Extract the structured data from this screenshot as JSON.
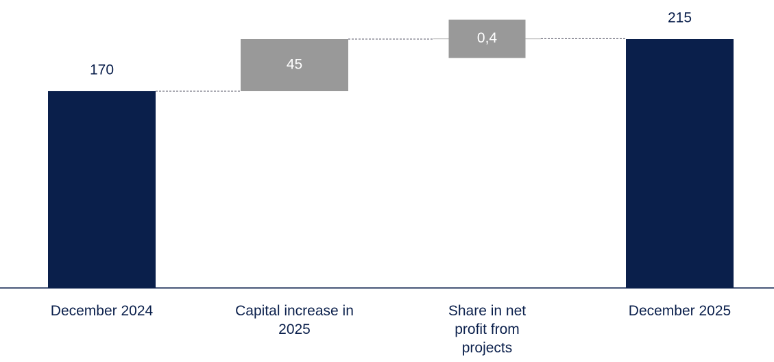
{
  "chart_data": {
    "type": "waterfall",
    "categories": [
      "December 2024",
      "Capital increase in 2025",
      "Share in net profit from projects",
      "December 2025"
    ],
    "values": [
      170,
      45,
      0.4,
      215
    ],
    "value_labels": [
      "170",
      "45",
      "0,4",
      "215"
    ],
    "kinds": [
      "total",
      "delta",
      "delta",
      "total"
    ],
    "colors": {
      "total": "#0a1f4b",
      "delta": "#999999"
    }
  }
}
